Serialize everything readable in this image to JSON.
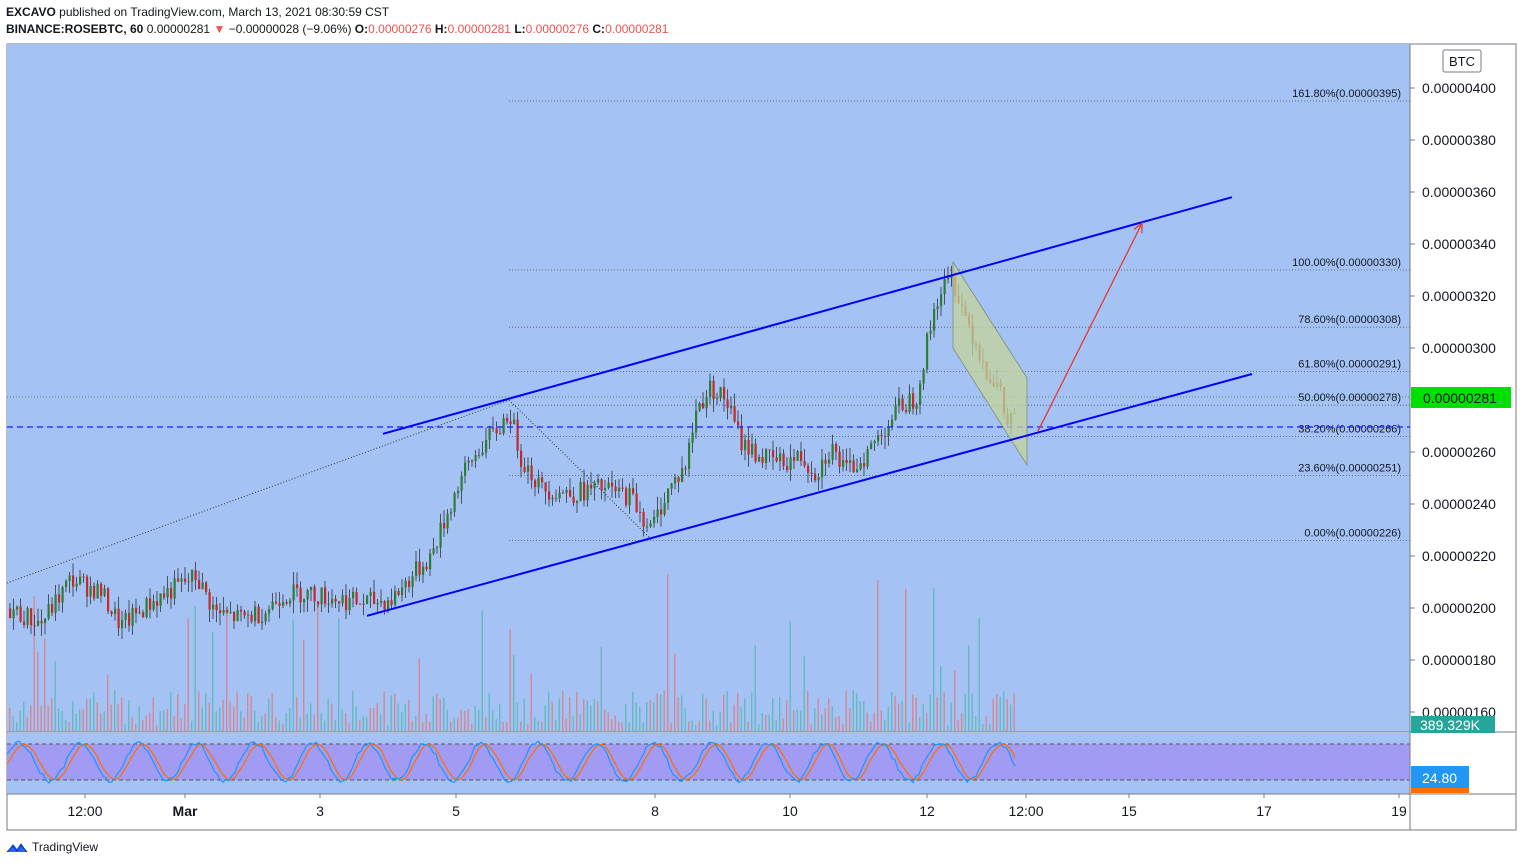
{
  "header": {
    "author": "EXCAVO",
    "published_text": "published on TradingView.com, March 13, 2021 08:30:59 CST",
    "symbol": "BINANCE:ROSEBTC, 60",
    "last": "0.00000281",
    "change_arrow": "▼",
    "change": "−0.00000028 (−9.06%)",
    "o_label": "O:",
    "o_value": "0.00000276",
    "h_label": "H:",
    "h_value": "0.00000281",
    "l_label": "L:",
    "l_value": "0.00000276",
    "c_label": "C:",
    "c_value": "0.00000281"
  },
  "footer": {
    "brand": "TradingView"
  },
  "colors": {
    "plot_bg": "#a4c2f4",
    "pane_bg": "#a4c2f4",
    "stoch_band": "#a29bf4",
    "channel": "#0000ff",
    "up_candle": "#2e7d32",
    "down_candle": "#c62828",
    "price_badge": "#00e000",
    "volume_badge": "#26a69a",
    "stoch_badge": "#2196f3",
    "stoch_badge_bottom": "#ff6d00",
    "arrow": "#e53935",
    "bull_flag": "#c5d59b",
    "fib_line": "#555555",
    "stoch_k": "#2196f3",
    "stoch_d": "#ff6d00"
  },
  "chart_data": {
    "type": "candlestick",
    "currency_label": "BTC",
    "y_ticks": [
      "0.00000400",
      "0.00000380",
      "0.00000360",
      "0.00000340",
      "0.00000320",
      "0.00000300",
      "0.00000260",
      "0.00000240",
      "0.00000220",
      "0.00000200",
      "0.00000180",
      "0.00000160"
    ],
    "ylim": [
      1.54e-06,
      4.14e-06
    ],
    "x_ticks": [
      "12:00",
      "Mar",
      "3",
      "5",
      "8",
      "10",
      "12",
      "12:00",
      "15",
      "17",
      "19"
    ],
    "current_price": "0.00000281",
    "volume_value": "389.329K",
    "stoch_value": "24.80",
    "fib_levels": [
      {
        "label": "161.80%(0.00000395)",
        "price": 3.95e-06
      },
      {
        "label": "100.00%(0.00000330)",
        "price": 3.3e-06
      },
      {
        "label": "78.60%(0.00000308)",
        "price": 3.08e-06
      },
      {
        "label": "61.80%(0.00000291)",
        "price": 2.91e-06
      },
      {
        "label": "50.00%(0.00000278)",
        "price": 2.78e-06
      },
      {
        "label": "38.20%(0.00000266)",
        "price": 2.66e-06
      },
      {
        "label": "23.60%(0.00000251)",
        "price": 2.51e-06
      },
      {
        "label": "0.00%(0.00000226)",
        "price": 2.26e-06
      }
    ],
    "price_path": [
      [
        0,
        2.01e-06
      ],
      [
        40,
        1.94e-06
      ],
      [
        70,
        2.11e-06
      ],
      [
        100,
        2.06e-06
      ],
      [
        120,
        1.93e-06
      ],
      [
        150,
        2.02e-06
      ],
      [
        175,
        2.08e-06
      ],
      [
        195,
        2.12e-06
      ],
      [
        215,
        1.98e-06
      ],
      [
        240,
        1.96e-06
      ],
      [
        265,
        1.99e-06
      ],
      [
        280,
        2.05e-06
      ],
      [
        300,
        2.06e-06
      ],
      [
        330,
        2.04e-06
      ],
      [
        360,
        2.02e-06
      ],
      [
        390,
        2.03e-06
      ],
      [
        410,
        2.12e-06
      ],
      [
        430,
        2.2e-06
      ],
      [
        445,
        2.35e-06
      ],
      [
        460,
        2.5e-06
      ],
      [
        480,
        2.62e-06
      ],
      [
        500,
        2.7e-06
      ],
      [
        508,
        2.76e-06
      ],
      [
        520,
        2.58e-06
      ],
      [
        540,
        2.46e-06
      ],
      [
        570,
        2.44e-06
      ],
      [
        600,
        2.46e-06
      ],
      [
        630,
        2.43e-06
      ],
      [
        650,
        2.3e-06
      ],
      [
        665,
        2.44e-06
      ],
      [
        685,
        2.55e-06
      ],
      [
        695,
        2.76e-06
      ],
      [
        710,
        2.85e-06
      ],
      [
        725,
        2.8e-06
      ],
      [
        740,
        2.64e-06
      ],
      [
        760,
        2.58e-06
      ],
      [
        780,
        2.56e-06
      ],
      [
        800,
        2.58e-06
      ],
      [
        815,
        2.52e-06
      ],
      [
        830,
        2.62e-06
      ],
      [
        845,
        2.52e-06
      ],
      [
        865,
        2.59e-06
      ],
      [
        885,
        2.7e-06
      ],
      [
        900,
        2.78e-06
      ],
      [
        915,
        2.81e-06
      ],
      [
        925,
        3e-06
      ],
      [
        935,
        3.18e-06
      ],
      [
        945,
        3.25e-06
      ],
      [
        952,
        3.26e-06
      ],
      [
        962,
        3.15e-06
      ],
      [
        972,
        3.05e-06
      ],
      [
        985,
        2.92e-06
      ],
      [
        998,
        2.84e-06
      ],
      [
        1006,
        2.7e-06
      ],
      [
        1016,
        2.78e-06
      ]
    ],
    "channel_upper": [
      [
        383,
        2.67e-06
      ],
      [
        1232,
        3.58e-06
      ]
    ],
    "channel_lower": [
      [
        367,
        1.97e-06
      ],
      [
        1252,
        2.9e-06
      ]
    ],
    "projection_arrow": [
      [
        1038,
        2.68e-06
      ],
      [
        1142,
        3.48e-06
      ]
    ],
    "x_tick_positions_note": ""
  }
}
